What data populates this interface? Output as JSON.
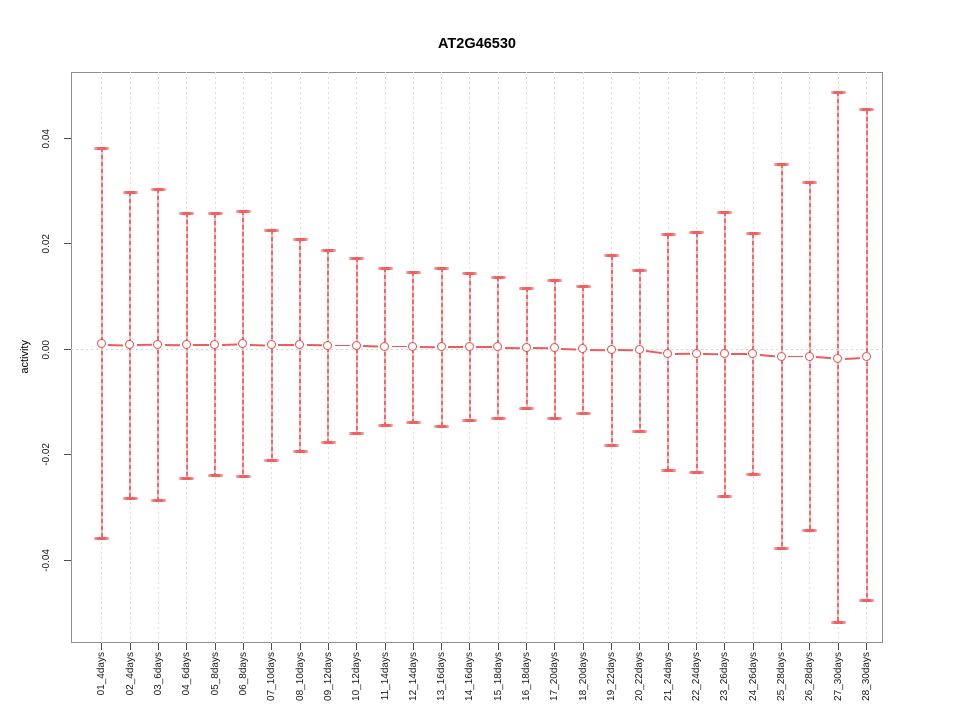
{
  "title": "AT2G46530",
  "ylabel": "activity",
  "chart_data": {
    "type": "errorbar",
    "title": "AT2G46530",
    "xlabel": "",
    "ylabel": "activity",
    "legend": "none",
    "grid": "dotted vertical gridline per category plus dotted horizontal line at y=0",
    "ylim": [
      -0.0557,
      0.0526
    ],
    "yticks": [
      {
        "value": -0.04,
        "label": "-0.04"
      },
      {
        "value": -0.02,
        "label": "-0.02"
      },
      {
        "value": 0.0,
        "label": "0.00"
      },
      {
        "value": 0.02,
        "label": "0.02"
      },
      {
        "value": 0.04,
        "label": "0.04"
      }
    ],
    "categories": [
      "01_4days",
      "02_4days",
      "03_6days",
      "04_6days",
      "05_8days",
      "06_8days",
      "07_10days",
      "08_10days",
      "09_12days",
      "10_12days",
      "11_14days",
      "12_14days",
      "13_16days",
      "14_16days",
      "15_18days",
      "16_18days",
      "17_20days",
      "18_20days",
      "19_22days",
      "20_22days",
      "21_24days",
      "22_24days",
      "23_26days",
      "24_26days",
      "25_28days",
      "26_28days",
      "27_30days",
      "28_30days"
    ],
    "series": [
      {
        "name": "activity",
        "values": [
          0.001,
          0.0008,
          0.0009,
          0.0008,
          0.0008,
          0.001,
          0.0008,
          0.0008,
          0.0007,
          0.0007,
          0.0005,
          0.0005,
          0.0004,
          0.0004,
          0.0004,
          0.0003,
          0.0002,
          0.0,
          -0.0001,
          -0.0002,
          -0.0009,
          -0.0008,
          -0.0009,
          -0.0009,
          -0.0014,
          -0.0014,
          -0.0018,
          -0.0015
        ],
        "upper": [
          0.0381,
          0.0298,
          0.0303,
          0.0258,
          0.0257,
          0.0262,
          0.0226,
          0.0209,
          0.0188,
          0.0173,
          0.0154,
          0.0146,
          0.0154,
          0.0143,
          0.0137,
          0.0116,
          0.0131,
          0.0119,
          0.0177,
          0.015,
          0.0217,
          0.0221,
          0.026,
          0.0219,
          0.0351,
          0.0317,
          0.0487,
          0.0454
        ],
        "lower": [
          -0.0358,
          -0.0283,
          -0.0286,
          -0.0245,
          -0.0239,
          -0.0242,
          -0.0211,
          -0.0194,
          -0.0176,
          -0.0159,
          -0.0145,
          -0.0139,
          -0.0147,
          -0.0135,
          -0.0131,
          -0.0113,
          -0.0132,
          -0.0121,
          -0.0183,
          -0.0155,
          -0.023,
          -0.0234,
          -0.0279,
          -0.0237,
          -0.0377,
          -0.0343,
          -0.0517,
          -0.0477
        ]
      }
    ],
    "colors": {
      "error_bar": "#f07070",
      "marker": "#ee5050",
      "gridline": "#dedede",
      "box": "#8e8e8e",
      "text": "#1a1a1a"
    }
  }
}
